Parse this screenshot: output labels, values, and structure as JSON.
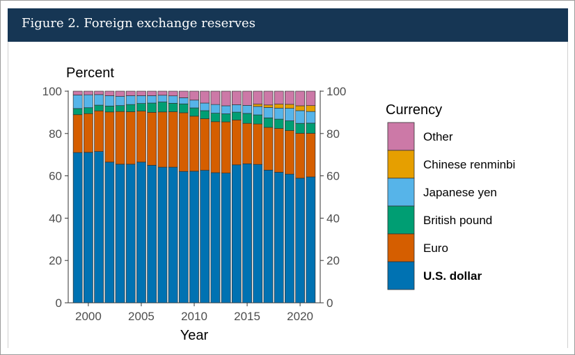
{
  "header": {
    "title": "Figure 2. Foreign exchange reserves"
  },
  "chart_data": {
    "type": "bar",
    "stacked": true,
    "ylabel": "Percent",
    "xlabel": "Year",
    "ylim": [
      0,
      100
    ],
    "yticks": [
      "0",
      "20",
      "40",
      "60",
      "80",
      "100"
    ],
    "xticks": [
      "2000",
      "2005",
      "2010",
      "2015",
      "2020"
    ],
    "x": [
      1999,
      2000,
      2001,
      2002,
      2003,
      2004,
      2005,
      2006,
      2007,
      2008,
      2009,
      2010,
      2011,
      2012,
      2013,
      2014,
      2015,
      2016,
      2017,
      2018,
      2019,
      2020,
      2021
    ],
    "legend_title": "Currency",
    "legend_order": [
      "Other",
      "Chinese renminbi",
      "Japanese yen",
      "British pound",
      "Euro",
      "U.S. dollar"
    ],
    "series": [
      {
        "name": "U.S. dollar",
        "color": "#0072b2",
        "values": [
          71.0,
          71.1,
          71.5,
          66.5,
          65.5,
          65.5,
          66.5,
          65.0,
          64.1,
          64.1,
          62.1,
          62.2,
          62.6,
          61.5,
          61.3,
          65.2,
          65.7,
          65.4,
          62.7,
          61.7,
          60.8,
          58.9,
          59.5
        ]
      },
      {
        "name": "Euro",
        "color": "#d55e00",
        "values": [
          17.9,
          18.3,
          19.2,
          23.7,
          24.9,
          24.8,
          24.1,
          25.0,
          26.1,
          26.2,
          27.7,
          26.0,
          24.4,
          24.1,
          24.2,
          21.2,
          19.1,
          19.1,
          20.2,
          20.7,
          20.6,
          21.2,
          20.6
        ]
      },
      {
        "name": "British pound",
        "color": "#009e73",
        "values": [
          2.9,
          2.8,
          2.7,
          2.8,
          2.8,
          3.4,
          3.6,
          4.4,
          4.7,
          4.0,
          4.2,
          3.9,
          3.8,
          4.0,
          3.8,
          3.7,
          4.7,
          4.3,
          4.5,
          4.4,
          4.6,
          4.7,
          4.8
        ]
      },
      {
        "name": "Japanese yen",
        "color": "#56b4e9",
        "values": [
          6.4,
          6.1,
          5.0,
          4.9,
          4.4,
          4.2,
          3.7,
          3.5,
          3.2,
          3.5,
          2.9,
          3.7,
          3.6,
          4.1,
          3.8,
          3.5,
          3.8,
          4.0,
          4.9,
          5.2,
          5.9,
          6.0,
          5.5
        ]
      },
      {
        "name": "Chinese renminbi",
        "color": "#e69f00",
        "values": [
          0,
          0,
          0,
          0,
          0,
          0,
          0,
          0,
          0,
          0,
          0,
          0,
          0,
          0,
          0,
          0,
          0,
          1.1,
          1.2,
          1.9,
          1.9,
          2.3,
          2.8
        ]
      },
      {
        "name": "Other",
        "color": "#cc79a7",
        "values": [
          1.8,
          1.7,
          1.6,
          2.1,
          2.4,
          2.1,
          2.1,
          2.1,
          1.9,
          2.2,
          3.1,
          4.2,
          5.6,
          6.3,
          6.9,
          6.4,
          6.7,
          6.1,
          6.5,
          6.1,
          6.2,
          6.9,
          6.8
        ]
      }
    ]
  }
}
